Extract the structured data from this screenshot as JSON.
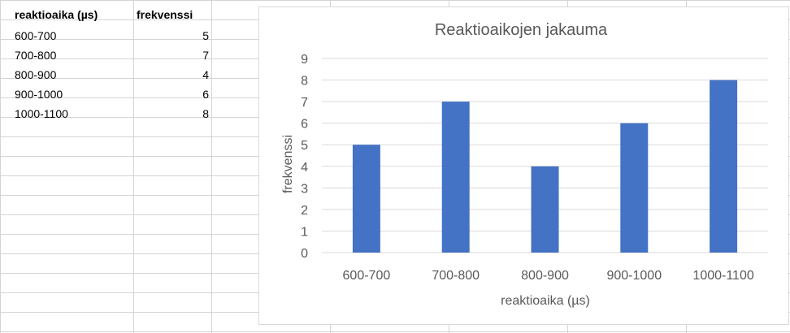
{
  "table": {
    "header": {
      "col_a": "reaktioaika (µs)",
      "col_b": "frekvenssi"
    },
    "rows": [
      {
        "a": "600-700",
        "b": "5"
      },
      {
        "a": "700-800",
        "b": "7"
      },
      {
        "a": "800-900",
        "b": "4"
      },
      {
        "a": "900-1000",
        "b": "6"
      },
      {
        "a": "1000-1100",
        "b": "8"
      }
    ]
  },
  "chart_data": {
    "type": "bar",
    "title": "Reaktioaikojen jakauma",
    "xlabel": "reaktioaika (µs)",
    "ylabel": "frekvenssi",
    "categories": [
      "600-700",
      "700-800",
      "800-900",
      "900-1000",
      "1000-1100"
    ],
    "values": [
      5,
      7,
      4,
      6,
      8
    ],
    "ylim": [
      0,
      9
    ],
    "yticks": [
      "0",
      "1",
      "2",
      "3",
      "4",
      "5",
      "6",
      "7",
      "8",
      "9"
    ],
    "grid": true,
    "bar_color": "#4472c4",
    "legend": false
  }
}
